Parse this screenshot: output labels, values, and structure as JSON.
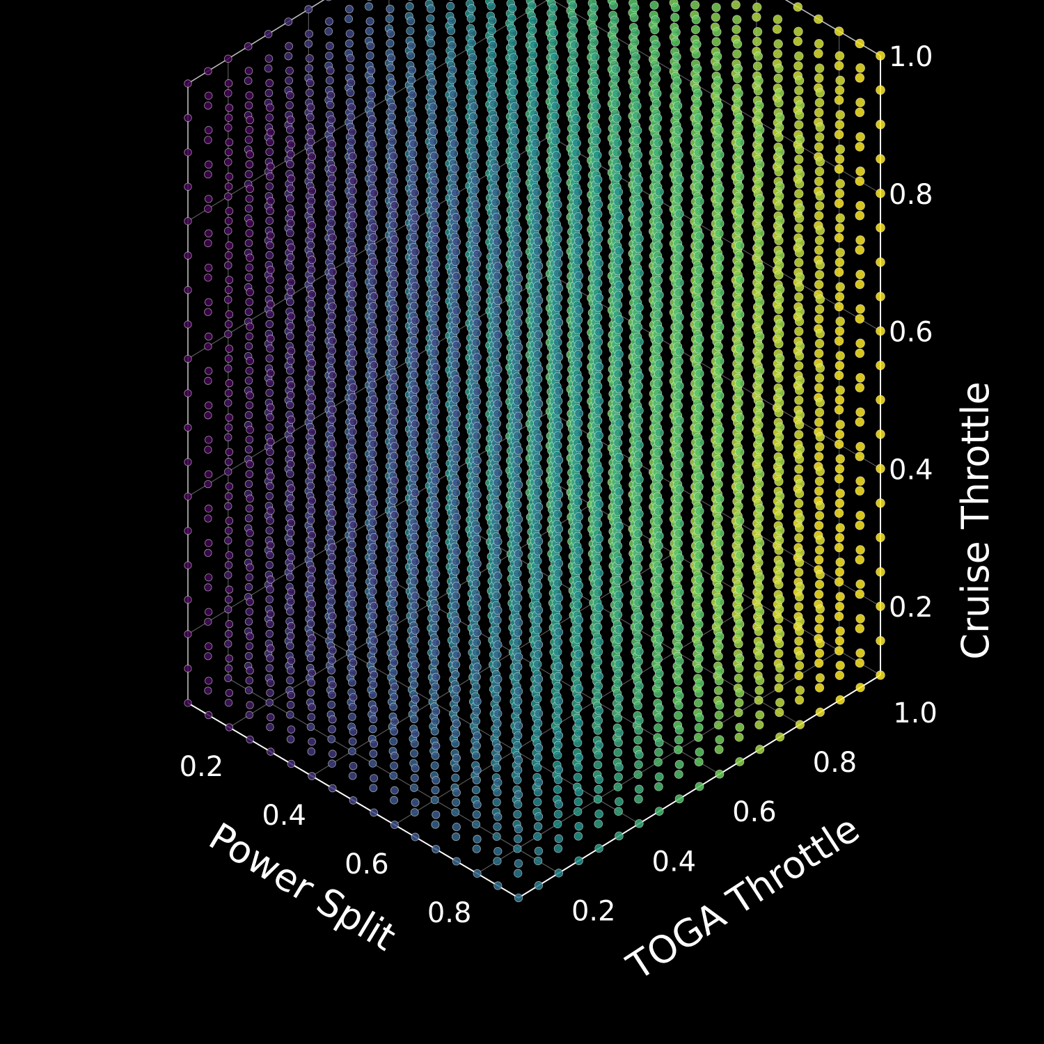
{
  "chart_data": {
    "type": "scatter",
    "projection": "3d",
    "grid": true,
    "colormap": "viridis",
    "colormap_stops": [
      "#440154",
      "#3b528b",
      "#21918c",
      "#5ec962",
      "#fde725"
    ],
    "background": "#000000",
    "point_edge_color": "#ffffff",
    "x_axis": {
      "label": "Power Split",
      "range": [
        0.1,
        0.9
      ],
      "ticks": [
        0.2,
        0.4,
        0.6,
        0.8
      ],
      "tick_labels": [
        "0.2",
        "0.4",
        "0.6",
        "0.8"
      ]
    },
    "y_axis": {
      "label": "TOGA Throttle",
      "range": [
        0.1,
        1.0
      ],
      "ticks": [
        0.2,
        0.4,
        0.6,
        0.8,
        1.0
      ],
      "tick_labels": [
        "0.2",
        "0.4",
        "0.6",
        "0.8",
        "1.0"
      ]
    },
    "z_axis": {
      "label": "Cruise Throttle",
      "range": [
        0.1,
        1.0
      ],
      "ticks": [
        0.2,
        0.4,
        0.6,
        0.8,
        1.0
      ],
      "tick_labels": [
        "0.2",
        "0.4",
        "0.6",
        "0.8",
        "1.0"
      ]
    },
    "grid_points": {
      "x": {
        "start": 0.1,
        "stop": 0.9,
        "count": 17
      },
      "y": {
        "start": 0.1,
        "stop": 1.0,
        "count": 19
      },
      "z": {
        "start": 0.1,
        "stop": 1.0,
        "count": 19
      }
    },
    "color_variable": "weighted combination of TOGA Throttle and Power Split (dark purple at low values, yellow at high values)"
  }
}
